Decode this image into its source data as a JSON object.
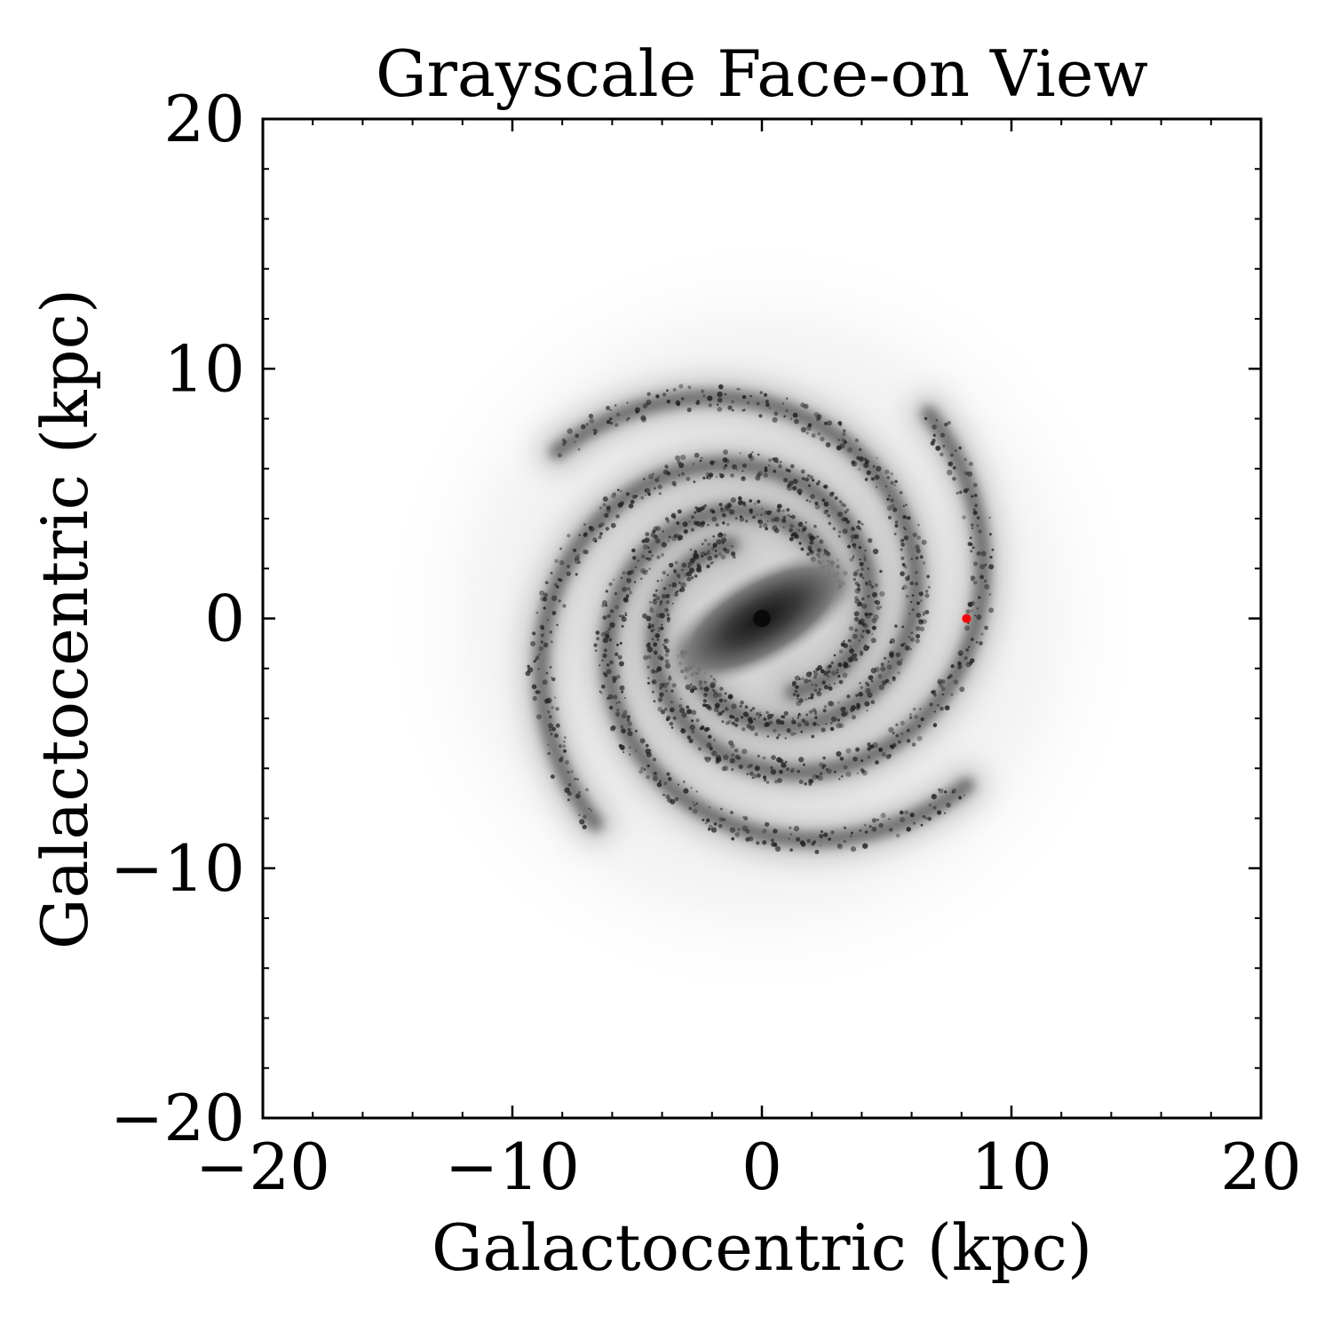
{
  "chart_data": {
    "type": "image",
    "title": "Grayscale Face-on View",
    "xlabel": "Galactocentric (kpc)",
    "ylabel": "Galactocentric (kpc)",
    "xlim": [
      -20,
      20
    ],
    "ylim": [
      -20,
      20
    ],
    "xticks": [
      -20,
      -10,
      0,
      10,
      20
    ],
    "yticks": [
      -20,
      -10,
      0,
      10,
      20
    ],
    "xtick_labels": [
      "−20",
      "−10",
      "0",
      "10",
      "20"
    ],
    "ytick_labels": [
      "−20",
      "−10",
      "0",
      "10",
      "20"
    ],
    "minor_tick_step": 2,
    "colormap": "grayscale (dark = dense)",
    "grid": false,
    "marker": {
      "x": 8.2,
      "y": 0,
      "color": "#ff0000"
    },
    "bar_angle_deg": 30,
    "spiral_arms": 4
  }
}
